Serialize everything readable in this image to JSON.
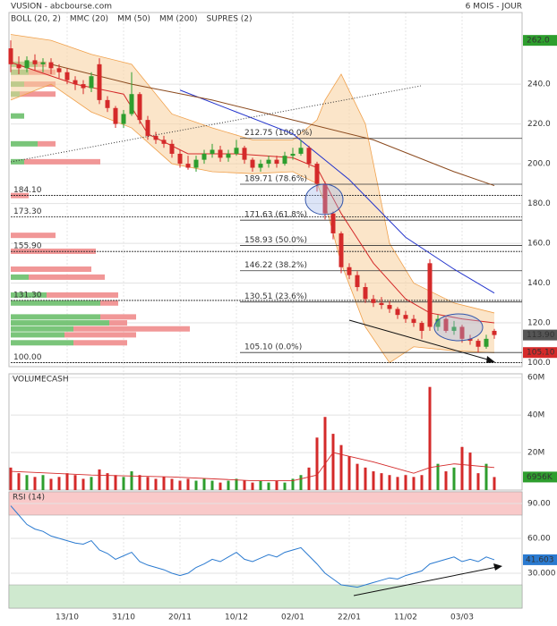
{
  "header": {
    "title": "VUSION - abcbourse.com",
    "period": "6 MOIS - JOUR"
  },
  "chart_data": [
    {
      "type": "candlestick",
      "up_color": "#2e9e2e",
      "down_color": "#d42a2a",
      "xticks": [
        {
          "value": 7,
          "label": "13/10"
        },
        {
          "value": 14,
          "label": "31/10"
        },
        {
          "value": 21,
          "label": "20/11"
        },
        {
          "value": 28,
          "label": "10/12"
        },
        {
          "value": 35,
          "label": "02/01"
        },
        {
          "value": 42,
          "label": "22/01"
        },
        {
          "value": 49,
          "label": "11/02"
        },
        {
          "value": 56,
          "label": "03/03"
        }
      ],
      "ylim": [
        98,
        276
      ],
      "yticks": [
        {
          "value": 240,
          "label": "240.0"
        },
        {
          "value": 220,
          "label": "220.0"
        },
        {
          "value": 200,
          "label": "200.0"
        },
        {
          "value": 180,
          "label": "180.0"
        },
        {
          "value": 160,
          "label": "160.0"
        },
        {
          "value": 140,
          "label": "140.0"
        },
        {
          "value": 120,
          "label": "120.0"
        },
        {
          "value": 100,
          "label": "100.0"
        }
      ],
      "grid": true,
      "candles": [
        [
          258,
          262,
          246,
          250
        ],
        [
          250,
          254,
          245,
          248
        ],
        [
          248,
          254,
          246,
          252
        ],
        [
          252,
          255,
          247,
          250
        ],
        [
          250,
          253,
          246,
          251
        ],
        [
          251,
          253,
          245,
          248
        ],
        [
          248,
          250,
          243,
          246
        ],
        [
          246,
          248,
          240,
          242
        ],
        [
          242,
          244,
          237,
          240
        ],
        [
          240,
          242,
          235,
          238
        ],
        [
          238,
          246,
          236,
          244
        ],
        [
          250,
          253,
          230,
          232
        ],
        [
          232,
          234,
          226,
          228
        ],
        [
          228,
          229,
          218,
          220
        ],
        [
          220,
          227,
          218,
          225
        ],
        [
          225,
          246,
          224,
          235
        ],
        [
          235,
          236,
          220,
          222
        ],
        [
          222,
          224,
          212,
          214
        ],
        [
          214,
          216,
          210,
          212
        ],
        [
          212,
          214,
          208,
          210
        ],
        [
          210,
          212,
          203,
          205
        ],
        [
          205,
          207,
          198,
          200
        ],
        [
          200,
          204,
          197,
          198
        ],
        [
          198,
          204,
          196,
          202
        ],
        [
          202,
          207,
          200,
          205
        ],
        [
          205,
          210,
          203,
          207
        ],
        [
          207,
          209,
          201,
          203
        ],
        [
          203,
          207,
          201,
          205
        ],
        [
          205,
          212,
          204,
          208
        ],
        [
          208,
          209,
          200,
          202
        ],
        [
          202,
          203,
          196,
          198
        ],
        [
          198,
          202,
          196,
          200
        ],
        [
          200,
          204,
          198,
          202
        ],
        [
          202,
          204,
          198,
          200
        ],
        [
          200,
          206,
          199,
          204
        ],
        [
          204,
          208,
          202,
          205
        ],
        [
          205,
          212,
          204,
          208
        ],
        [
          208,
          209,
          198,
          200
        ],
        [
          200,
          201,
          186,
          190
        ],
        [
          190,
          191,
          172,
          175
        ],
        [
          175,
          176,
          162,
          165
        ],
        [
          165,
          166,
          145,
          148
        ],
        [
          148,
          150,
          142,
          144
        ],
        [
          144,
          146,
          136,
          138
        ],
        [
          138,
          140,
          130,
          132
        ],
        [
          132,
          134,
          128,
          130
        ],
        [
          130,
          133,
          127,
          129
        ],
        [
          129,
          131,
          125,
          127
        ],
        [
          127,
          128,
          122,
          124
        ],
        [
          124,
          126,
          120,
          122
        ],
        [
          122,
          124,
          118,
          120
        ],
        [
          120,
          121,
          112,
          116
        ],
        [
          150,
          152,
          116,
          118
        ],
        [
          118,
          124,
          116,
          122
        ],
        [
          122,
          123,
          115,
          116
        ],
        [
          116,
          121,
          114,
          118
        ],
        [
          118,
          119,
          110,
          112
        ],
        [
          112,
          114,
          109,
          111
        ],
        [
          111,
          112,
          105,
          108
        ],
        [
          108,
          114,
          107,
          112
        ],
        [
          116,
          117,
          112,
          113.9
        ]
      ],
      "bollinger": {
        "name": "BOLL (20, 2)",
        "color": "#f0a04b",
        "fill": "#f8cf9c",
        "x": [
          0,
          5,
          10,
          15,
          20,
          25,
          30,
          35,
          38,
          39,
          41,
          44,
          47,
          50,
          55,
          60
        ],
        "upper": [
          265,
          262,
          255,
          250,
          225,
          218,
          212,
          212,
          222,
          232,
          245,
          220,
          160,
          140,
          130,
          125
        ],
        "lower": [
          232,
          240,
          226,
          218,
          200,
          196,
          195,
          196,
          190,
          180,
          150,
          118,
          100,
          108,
          106,
          105
        ]
      },
      "overlays": [
        {
          "name": "MMC (20)",
          "legend_color": "#2e9e2e",
          "color": "#d42a2a",
          "x": [
            0,
            8,
            14,
            17,
            22,
            28,
            35,
            38,
            41,
            45,
            49,
            52,
            56,
            60
          ],
          "values": [
            251,
            240,
            235,
            215,
            205,
            205,
            203,
            198,
            175,
            150,
            132,
            125,
            122,
            120
          ]
        },
        {
          "name": "MM (50)",
          "legend_color": "#2233cc",
          "color": "#2233cc",
          "x": [
            21,
            28,
            35,
            42,
            49,
            55,
            60
          ],
          "values": [
            237,
            226,
            215,
            192,
            163,
            147,
            135
          ]
        },
        {
          "name": "MM (200)",
          "legend_color": "#8b4a1e",
          "color": "#8b4a1e",
          "x": [
            5,
            15,
            25,
            35,
            45,
            55,
            60
          ],
          "values": [
            250,
            240,
            232,
            222,
            212,
            196,
            189
          ]
        }
      ],
      "supres": {
        "name": "SUPRES (2)",
        "color": "#8fd18f",
        "levels": [
          {
            "value": 184.1,
            "label": "184.10"
          },
          {
            "value": 173.3,
            "label": "173.30"
          },
          {
            "value": 155.9,
            "label": "155.90"
          },
          {
            "value": 131.3,
            "label": "131.30"
          },
          {
            "value": 100,
            "label": "100.00"
          }
        ]
      },
      "fibonacci": [
        {
          "value": 212.75,
          "label": "212.75 (100.0%)"
        },
        {
          "value": 189.71,
          "label": "189.71 (78.6%)"
        },
        {
          "value": 171.63,
          "label": "171.63 (61.8%)"
        },
        {
          "value": 158.93,
          "label": "158.93 (50.0%)"
        },
        {
          "value": 146.22,
          "label": "146.22 (38.2%)"
        },
        {
          "value": 130.51,
          "label": "130.51 (23.6%)"
        },
        {
          "value": 105.1,
          "label": "105.10 (0.0%)"
        }
      ],
      "markers": [
        {
          "value": 262,
          "label": "262.0",
          "color": "#2e9e2e"
        },
        {
          "value": 113.9,
          "label": "113.90",
          "color": "#555555"
        },
        {
          "value": 105.1,
          "label": "105.10",
          "color": "#d42a2a"
        }
      ],
      "volume_profile": {
        "xlim": [
          0,
          200
        ],
        "up_color": "#6cbf6c",
        "down_color": "#f08c8c",
        "rows": [
          [
            250,
            30,
            10
          ],
          [
            246,
            20,
            30
          ],
          [
            240,
            15,
            35
          ],
          [
            235,
            10,
            40
          ],
          [
            224,
            15,
            0
          ],
          [
            210,
            30,
            20
          ],
          [
            201,
            15,
            85
          ],
          [
            184,
            0,
            20
          ],
          [
            164,
            0,
            50
          ],
          [
            156,
            0,
            95
          ],
          [
            147,
            0,
            90
          ],
          [
            143,
            20,
            85
          ],
          [
            134,
            40,
            80
          ],
          [
            130,
            100,
            20
          ],
          [
            123,
            100,
            40
          ],
          [
            120,
            110,
            20
          ],
          [
            117,
            70,
            130
          ],
          [
            114,
            60,
            80
          ],
          [
            110,
            70,
            60
          ]
        ]
      }
    },
    {
      "type": "bar",
      "title": "VOLUMECASH",
      "ylim": [
        0,
        62
      ],
      "yticks": [
        {
          "value": 60,
          "label": "60M"
        },
        {
          "value": 40,
          "label": "40M"
        },
        {
          "value": 20,
          "label": "20M"
        }
      ],
      "values": [
        12,
        9,
        8,
        7,
        8,
        6,
        7,
        9,
        8,
        6,
        7,
        11,
        9,
        8,
        7,
        10,
        8,
        7,
        6,
        7,
        6,
        5,
        6,
        5,
        6,
        5,
        4,
        5,
        6,
        5,
        4,
        5,
        4,
        5,
        4,
        6,
        8,
        12,
        28,
        39,
        30,
        24,
        18,
        14,
        12,
        10,
        9,
        8,
        7,
        8,
        7,
        8,
        55,
        14,
        10,
        12,
        23,
        20,
        9,
        14,
        6.956
      ],
      "last_label": "6956K",
      "last_color": "#2e9e2e",
      "average": {
        "color": "#d42a2a",
        "x": [
          0,
          10,
          20,
          30,
          35,
          38,
          40,
          45,
          50,
          52,
          55,
          60
        ],
        "values": [
          10,
          8,
          7,
          5,
          5,
          8,
          20,
          15,
          9,
          12,
          14,
          12
        ]
      }
    },
    {
      "type": "line",
      "title": "RSI (14)",
      "color": "#2a7ad0",
      "ylim": [
        0,
        100
      ],
      "yticks": [
        {
          "value": 90,
          "label": "90.00"
        },
        {
          "value": 60,
          "label": "60.00"
        },
        {
          "value": 30,
          "label": "30.000"
        }
      ],
      "zones": [
        {
          "from": 80,
          "to": 100,
          "color": "#f9c9c9"
        },
        {
          "from": 0,
          "to": 20,
          "color": "#cfe9cf"
        }
      ],
      "values": [
        88,
        80,
        72,
        68,
        66,
        62,
        60,
        58,
        56,
        55,
        58,
        50,
        47,
        42,
        45,
        48,
        40,
        37,
        35,
        33,
        30,
        28,
        30,
        35,
        38,
        42,
        40,
        44,
        48,
        42,
        40,
        43,
        46,
        44,
        48,
        50,
        52,
        45,
        38,
        30,
        25,
        20,
        19,
        18,
        20,
        22,
        24,
        26,
        25,
        28,
        30,
        32,
        38,
        40,
        42,
        44,
        40,
        42,
        40,
        44,
        41.603
      ],
      "last_label": "41.603"
    }
  ]
}
